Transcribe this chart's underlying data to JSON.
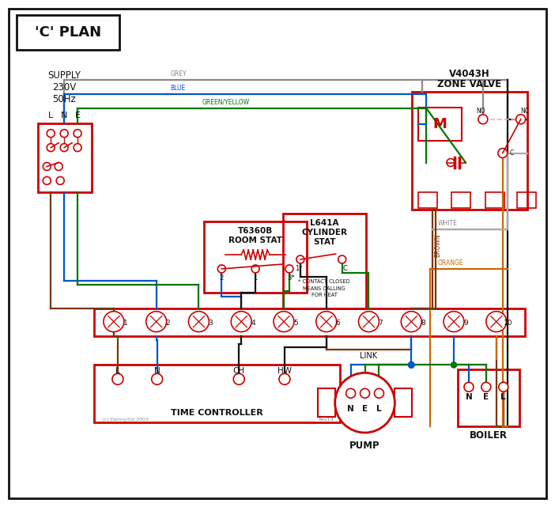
{
  "title": "'C' PLAN",
  "bg_color": "#ffffff",
  "red": "#cc0000",
  "blue": "#0055cc",
  "green": "#007700",
  "brown": "#7a3500",
  "grey": "#888888",
  "orange": "#cc6600",
  "black": "#111111",
  "white_wire": "#aaaaaa",
  "pink": "#ffaaaa",
  "time_controller_label": "TIME CONTROLLER",
  "room_stat_labels": [
    "T6360B",
    "ROOM STAT"
  ],
  "cyl_stat_labels": [
    "L641A",
    "CYLINDER",
    "STAT"
  ],
  "zone_valve_labels": [
    "V4043H",
    "ZONE VALVE"
  ],
  "pump_label": "PUMP",
  "boiler_label": "BOILER",
  "link_label": "LINK",
  "note_text": "* CONTACT CLOSED\nMEANS CALLING\nFOR HEAT",
  "copyright": "(c) Danny/Oz 2003",
  "rev": "Rev1d"
}
